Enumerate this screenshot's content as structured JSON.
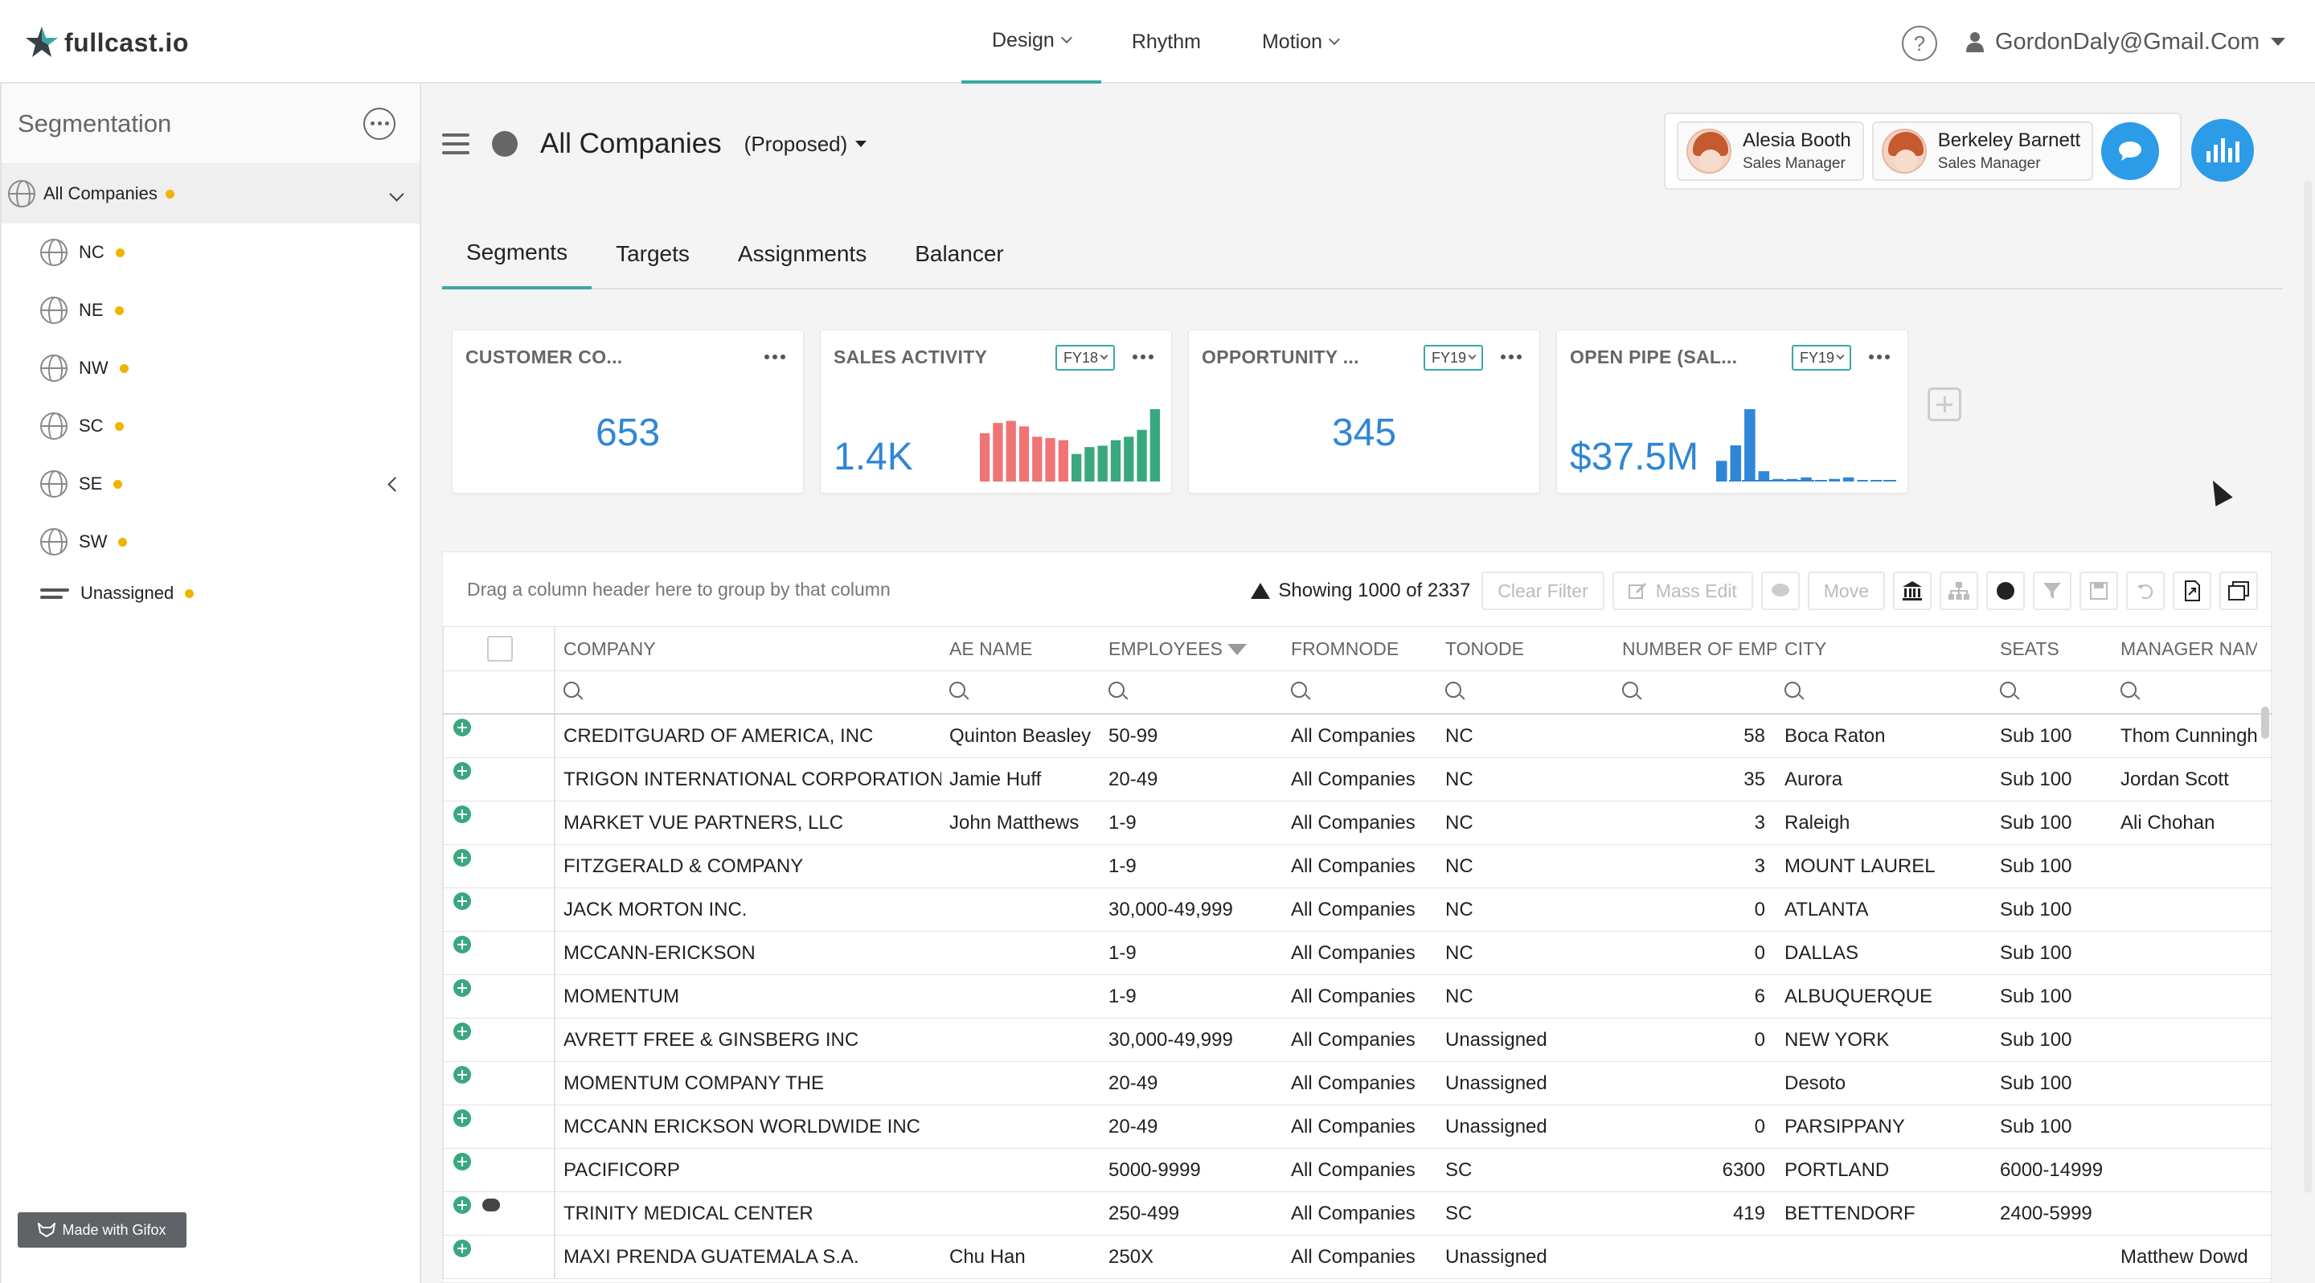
{
  "app": {
    "logo_text": "fullcast.io"
  },
  "nav": {
    "items": [
      {
        "label": "Design"
      },
      {
        "label": "Rhythm"
      },
      {
        "label": "Motion"
      }
    ]
  },
  "user": {
    "email": "GordonDaly@Gmail.Com"
  },
  "sidebar": {
    "title": "Segmentation",
    "root": "All Companies",
    "items": [
      {
        "label": "NC"
      },
      {
        "label": "NE"
      },
      {
        "label": "NW"
      },
      {
        "label": "SC"
      },
      {
        "label": "SE"
      },
      {
        "label": "SW"
      },
      {
        "label": "Unassigned"
      }
    ]
  },
  "gifox": {
    "label": "Made with Gifox"
  },
  "page": {
    "title": "All Companies",
    "status": "(Proposed)"
  },
  "collaborators": [
    {
      "name": "Alesia Booth",
      "role": "Sales Manager"
    },
    {
      "name": "Berkeley Barnett",
      "role": "Sales Manager"
    }
  ],
  "tabs": [
    {
      "label": "Segments"
    },
    {
      "label": "Targets"
    },
    {
      "label": "Assignments"
    },
    {
      "label": "Balancer"
    }
  ],
  "cards": [
    {
      "title": "CUSTOMER CO...",
      "value": "653"
    },
    {
      "title": "SALES ACTIVITY",
      "fy": "FY18",
      "value": "1.4K"
    },
    {
      "title": "OPPORTUNITY ...",
      "fy": "FY19",
      "value": "345"
    },
    {
      "title": "OPEN PIPE (SAL...",
      "fy": "FY19",
      "value": "$37.5M"
    }
  ],
  "chart_data": [
    {
      "type": "bar",
      "title": "SALES ACTIVITY",
      "colors": [
        "#f07474",
        "#3aa87e"
      ],
      "series": [
        {
          "name": "FY18",
          "values": [
            7,
            8.5,
            8.8,
            8,
            6.5,
            6.3,
            6,
            4,
            5,
            5.2,
            6,
            6.5,
            7.5,
            10.5
          ]
        }
      ]
    },
    {
      "type": "bar",
      "title": "OPEN PIPE (SAL...",
      "colors": [
        "#2f86d6"
      ],
      "series": [
        {
          "name": "FY19",
          "values": [
            4,
            7,
            14,
            2,
            0.5,
            0.5,
            0.8,
            0.3,
            0.5,
            0.8,
            0.3,
            0.3,
            0.3
          ]
        }
      ]
    }
  ],
  "grid": {
    "group_hint": "Drag a column header here to group by that column",
    "showing": "Showing 1000 of 2337",
    "buttons": {
      "clear_filter": "Clear Filter",
      "mass_edit": "Mass Edit",
      "move": "Move"
    },
    "columns": [
      "COMPANY",
      "AE NAME",
      "EMPLOYEES",
      "FROMNODE",
      "TONODE",
      "NUMBER OF EMP",
      "CITY",
      "SEATS",
      "MANAGER NAM"
    ],
    "rows": [
      [
        "CREDITGUARD OF AMERICA, INC",
        "Quinton Beasley",
        "50-99",
        "All Companies",
        "NC",
        "58",
        "Boca Raton",
        "Sub 100",
        "Thom Cunningham"
      ],
      [
        "TRIGON INTERNATIONAL CORPORATION",
        "Jamie Huff",
        "20-49",
        "All Companies",
        "NC",
        "35",
        "Aurora",
        "Sub 100",
        "Jordan Scott"
      ],
      [
        "MARKET VUE PARTNERS, LLC",
        "John Matthews",
        "1-9",
        "All Companies",
        "NC",
        "3",
        "Raleigh",
        "Sub 100",
        "Ali Chohan"
      ],
      [
        "FITZGERALD & COMPANY",
        "",
        "1-9",
        "All Companies",
        "NC",
        "3",
        "MOUNT LAUREL",
        "Sub 100",
        ""
      ],
      [
        "JACK MORTON INC.",
        "",
        "30,000-49,999",
        "All Companies",
        "NC",
        "0",
        "ATLANTA",
        "Sub 100",
        ""
      ],
      [
        "MCCANN-ERICKSON",
        "",
        "1-9",
        "All Companies",
        "NC",
        "0",
        "DALLAS",
        "Sub 100",
        ""
      ],
      [
        "MOMENTUM",
        "",
        "1-9",
        "All Companies",
        "NC",
        "6",
        "ALBUQUERQUE",
        "Sub 100",
        ""
      ],
      [
        "AVRETT FREE & GINSBERG INC",
        "",
        "30,000-49,999",
        "All Companies",
        "Unassigned",
        "0",
        "NEW YORK",
        "Sub 100",
        ""
      ],
      [
        "MOMENTUM COMPANY THE",
        "",
        "20-49",
        "All Companies",
        "Unassigned",
        "",
        "Desoto",
        "Sub 100",
        ""
      ],
      [
        "MCCANN ERICKSON WORLDWIDE INC",
        "",
        "20-49",
        "All Companies",
        "Unassigned",
        "0",
        "PARSIPPANY",
        "Sub 100",
        ""
      ],
      [
        "PACIFICORP",
        "",
        "5000-9999",
        "All Companies",
        "SC",
        "6300",
        "PORTLAND",
        "6000-14999",
        ""
      ],
      [
        "TRINITY MEDICAL CENTER",
        "",
        "250-499",
        "All Companies",
        "SC",
        "419",
        "BETTENDORF",
        "2400-5999",
        ""
      ],
      [
        "MAXI PRENDA GUATEMALA S.A.",
        "Chu Han",
        "250X",
        "All Companies",
        "Unassigned",
        "",
        "",
        "",
        "Matthew Dowd"
      ]
    ]
  }
}
